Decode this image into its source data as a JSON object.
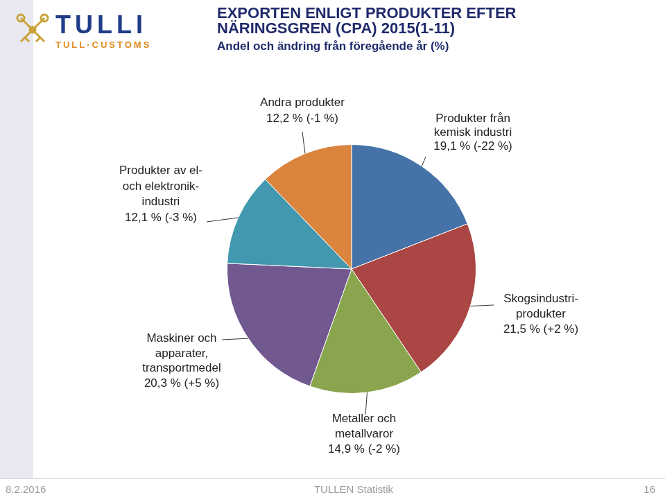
{
  "header": {
    "logo_text": "TULLI",
    "logo_subtext": "TULL·CUSTOMS"
  },
  "chart_data": {
    "type": "pie",
    "title": "EXPORTEN ENLIGT PRODUKTER EFTER\nNÄRINGSGREN (CPA) 2015(1-11)",
    "subtitle": "Andel och ändring från föregående år (%)",
    "categories": [
      "Produkter från\nkemisk industri",
      "Skogsindustri-\nprodukter",
      "Metaller och\nmetallvaror",
      "Maskiner och\napparater,\ntransportmedel",
      "Produkter av el-\noch elektronik-\nindustri",
      "Andra produkter"
    ],
    "values": [
      19.1,
      21.5,
      14.9,
      20.3,
      12.1,
      12.2
    ],
    "value_labels": [
      "19,1 % (-22 %)",
      "21,5 % (+2 %)",
      "14,9 % (-2 %)",
      "20,3 % (+5 %)",
      "12,1 % (-3 %)",
      "12,2 % (-1 %)"
    ],
    "colors": [
      "#4572a7",
      "#aa4643",
      "#89a54e",
      "#71588f",
      "#4198af",
      "#db843d"
    ],
    "data_labels": true,
    "legend": false
  },
  "footer": {
    "date": "8.2.2016",
    "text": "TULLEN Statistik",
    "page": 16
  }
}
